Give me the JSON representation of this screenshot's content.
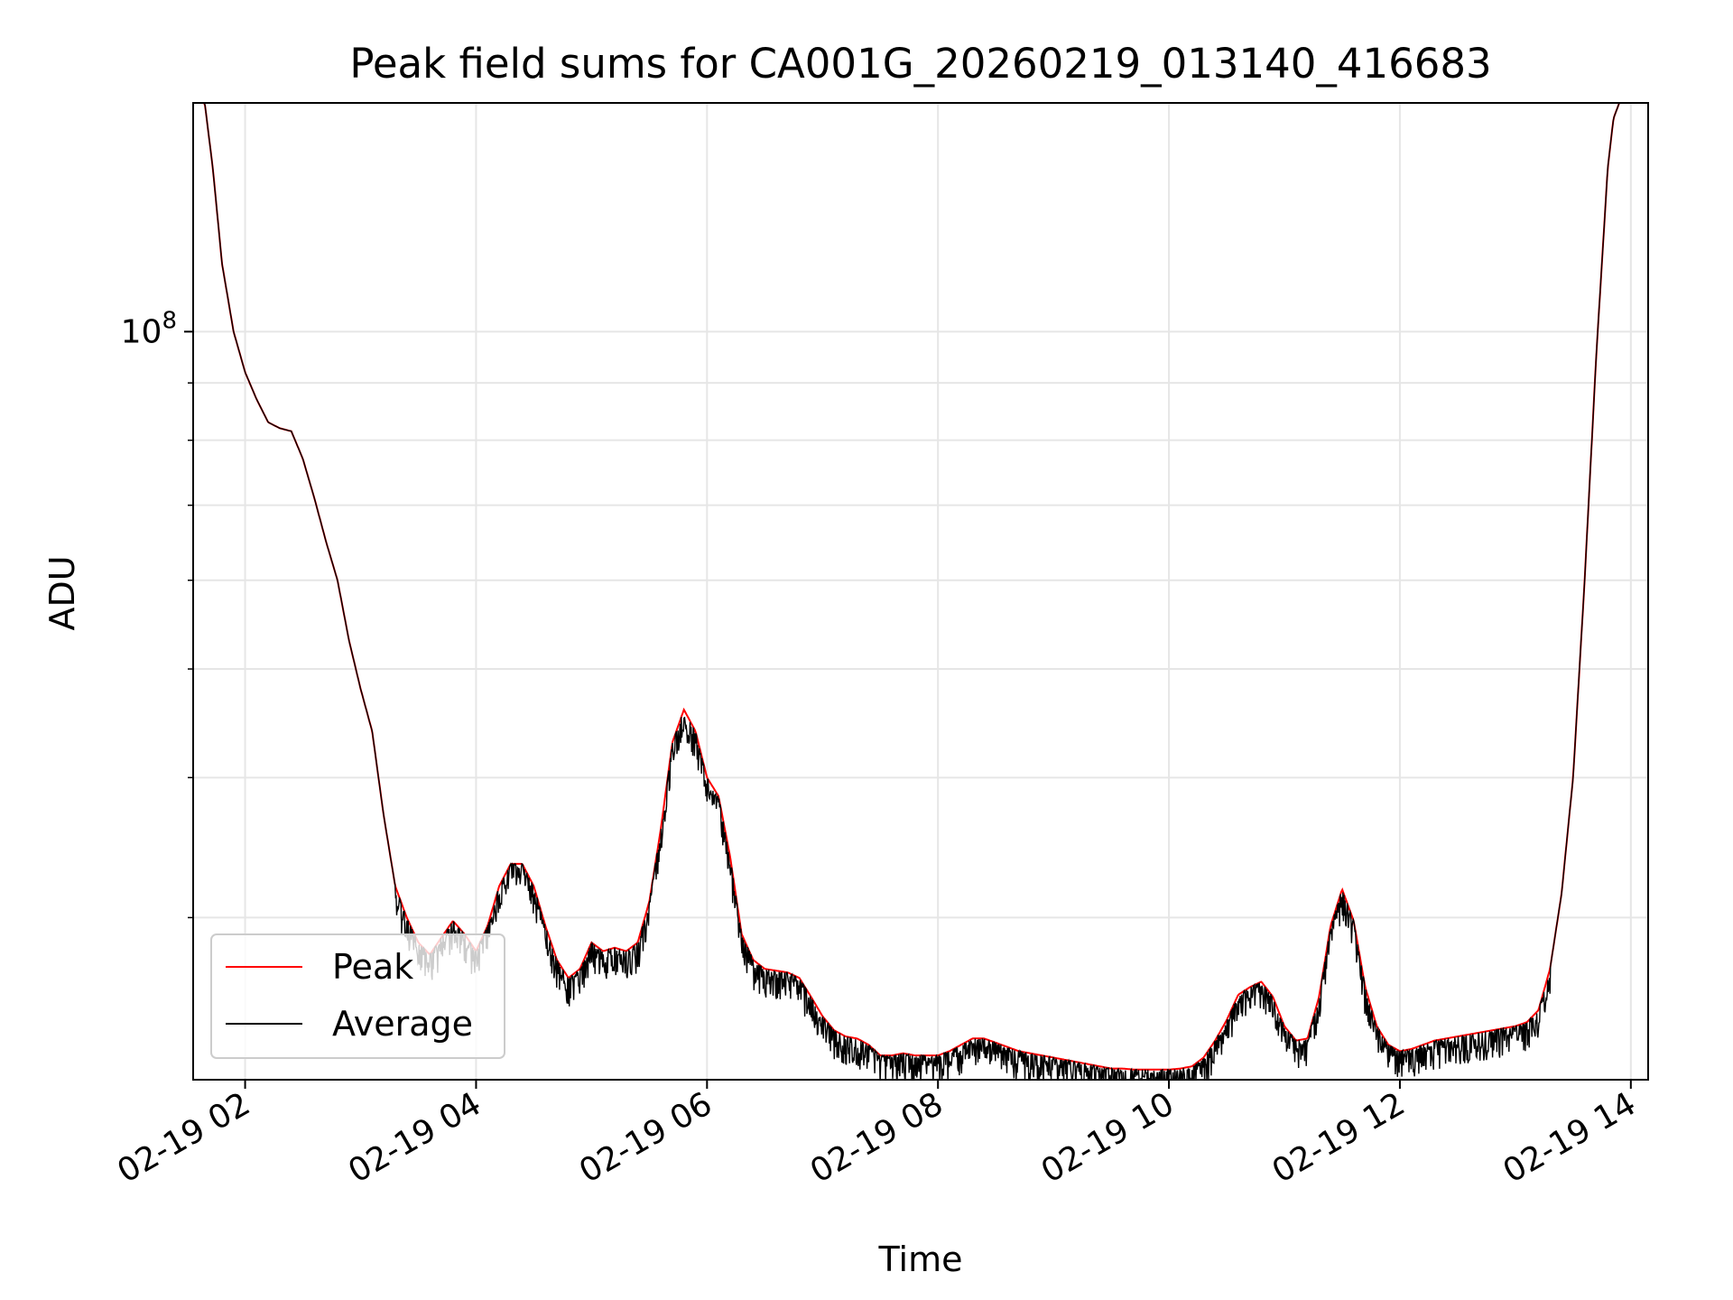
{
  "chart_data": {
    "type": "line",
    "title": "Peak field sums for CA001G_20260219_013140_416683",
    "xlabel": "Time",
    "ylabel": "ADU",
    "x_ticks": [
      "02-19 02",
      "02-19 04",
      "02-19 06",
      "02-19 08",
      "02-19 10",
      "02-19 12",
      "02-19 14"
    ],
    "x_tick_hours": [
      2,
      4,
      6,
      8,
      10,
      12,
      14
    ],
    "xlim_hours": [
      1.55,
      14.15
    ],
    "y_scale": "log",
    "ylim": [
      21500000,
      160000000
    ],
    "y_tick_labels": [
      {
        "base": "10",
        "exp": "8",
        "value": 100000000
      }
    ],
    "y_minor_ticks": [
      30000000,
      40000000,
      50000000,
      60000000,
      70000000,
      80000000,
      90000000
    ],
    "grid": true,
    "legend_position": "lower-left",
    "legend": [
      "Peak",
      "Average"
    ],
    "series": [
      {
        "name": "Peak",
        "color": "#ff0000",
        "points": [
          [
            1.6,
            160000000
          ],
          [
            1.65,
            160000000
          ],
          [
            1.72,
            140000000
          ],
          [
            1.8,
            115000000
          ],
          [
            1.9,
            100000000
          ],
          [
            2.0,
            92000000
          ],
          [
            2.1,
            87000000
          ],
          [
            2.2,
            83000000
          ],
          [
            2.3,
            82000000
          ],
          [
            2.4,
            81500000
          ],
          [
            2.5,
            77000000
          ],
          [
            2.6,
            71000000
          ],
          [
            2.7,
            65000000
          ],
          [
            2.8,
            60000000
          ],
          [
            2.9,
            53000000
          ],
          [
            3.0,
            48000000
          ],
          [
            3.1,
            44000000
          ],
          [
            3.2,
            37000000
          ],
          [
            3.3,
            32000000
          ],
          [
            3.4,
            30000000
          ],
          [
            3.5,
            28500000
          ],
          [
            3.6,
            27800000
          ],
          [
            3.7,
            28800000
          ],
          [
            3.8,
            29800000
          ],
          [
            3.9,
            29000000
          ],
          [
            4.0,
            28000000
          ],
          [
            4.1,
            29500000
          ],
          [
            4.2,
            32000000
          ],
          [
            4.3,
            33500000
          ],
          [
            4.4,
            33500000
          ],
          [
            4.5,
            32000000
          ],
          [
            4.6,
            29500000
          ],
          [
            4.7,
            27500000
          ],
          [
            4.8,
            26500000
          ],
          [
            4.9,
            27000000
          ],
          [
            5.0,
            28500000
          ],
          [
            5.1,
            28000000
          ],
          [
            5.2,
            28200000
          ],
          [
            5.3,
            28000000
          ],
          [
            5.4,
            28500000
          ],
          [
            5.5,
            31000000
          ],
          [
            5.6,
            36000000
          ],
          [
            5.7,
            43000000
          ],
          [
            5.8,
            46000000
          ],
          [
            5.9,
            44000000
          ],
          [
            6.0,
            40000000
          ],
          [
            6.1,
            38500000
          ],
          [
            6.2,
            34000000
          ],
          [
            6.3,
            29000000
          ],
          [
            6.4,
            27500000
          ],
          [
            6.5,
            27000000
          ],
          [
            6.6,
            26900000
          ],
          [
            6.7,
            26800000
          ],
          [
            6.8,
            26500000
          ],
          [
            6.9,
            25500000
          ],
          [
            7.0,
            24500000
          ],
          [
            7.1,
            23800000
          ],
          [
            7.2,
            23500000
          ],
          [
            7.3,
            23400000
          ],
          [
            7.4,
            23100000
          ],
          [
            7.5,
            22600000
          ],
          [
            7.6,
            22600000
          ],
          [
            7.7,
            22700000
          ],
          [
            7.8,
            22600000
          ],
          [
            7.9,
            22600000
          ],
          [
            8.0,
            22600000
          ],
          [
            8.1,
            22800000
          ],
          [
            8.2,
            23100000
          ],
          [
            8.3,
            23400000
          ],
          [
            8.4,
            23400000
          ],
          [
            8.5,
            23200000
          ],
          [
            8.6,
            23000000
          ],
          [
            8.7,
            22800000
          ],
          [
            8.8,
            22700000
          ],
          [
            8.9,
            22600000
          ],
          [
            9.0,
            22500000
          ],
          [
            9.1,
            22400000
          ],
          [
            9.2,
            22300000
          ],
          [
            9.3,
            22200000
          ],
          [
            9.4,
            22100000
          ],
          [
            9.5,
            22000000
          ],
          [
            9.6,
            22000000
          ],
          [
            9.7,
            21950000
          ],
          [
            9.8,
            21950000
          ],
          [
            9.9,
            21950000
          ],
          [
            10.0,
            21950000
          ],
          [
            10.1,
            22000000
          ],
          [
            10.2,
            22100000
          ],
          [
            10.3,
            22500000
          ],
          [
            10.4,
            23300000
          ],
          [
            10.5,
            24300000
          ],
          [
            10.6,
            25600000
          ],
          [
            10.7,
            26000000
          ],
          [
            10.8,
            26300000
          ],
          [
            10.9,
            25500000
          ],
          [
            11.0,
            24000000
          ],
          [
            11.1,
            23300000
          ],
          [
            11.2,
            23400000
          ],
          [
            11.3,
            25500000
          ],
          [
            11.4,
            29500000
          ],
          [
            11.5,
            31800000
          ],
          [
            11.6,
            29800000
          ],
          [
            11.7,
            26000000
          ],
          [
            11.8,
            24000000
          ],
          [
            11.9,
            23100000
          ],
          [
            12.0,
            22800000
          ],
          [
            12.1,
            22900000
          ],
          [
            12.2,
            23100000
          ],
          [
            12.3,
            23300000
          ],
          [
            12.4,
            23400000
          ],
          [
            12.5,
            23500000
          ],
          [
            12.6,
            23600000
          ],
          [
            12.7,
            23700000
          ],
          [
            12.8,
            23800000
          ],
          [
            12.9,
            23900000
          ],
          [
            13.0,
            24000000
          ],
          [
            13.1,
            24200000
          ],
          [
            13.2,
            24800000
          ],
          [
            13.3,
            27000000
          ],
          [
            13.4,
            31500000
          ],
          [
            13.5,
            40000000
          ],
          [
            13.6,
            60000000
          ],
          [
            13.7,
            95000000
          ],
          [
            13.8,
            140000000
          ],
          [
            13.85,
            155000000
          ],
          [
            13.9,
            160000000
          ]
        ]
      },
      {
        "name": "Average",
        "color": "#000000",
        "noise_amplitude": 0.05,
        "points": []
      }
    ]
  }
}
